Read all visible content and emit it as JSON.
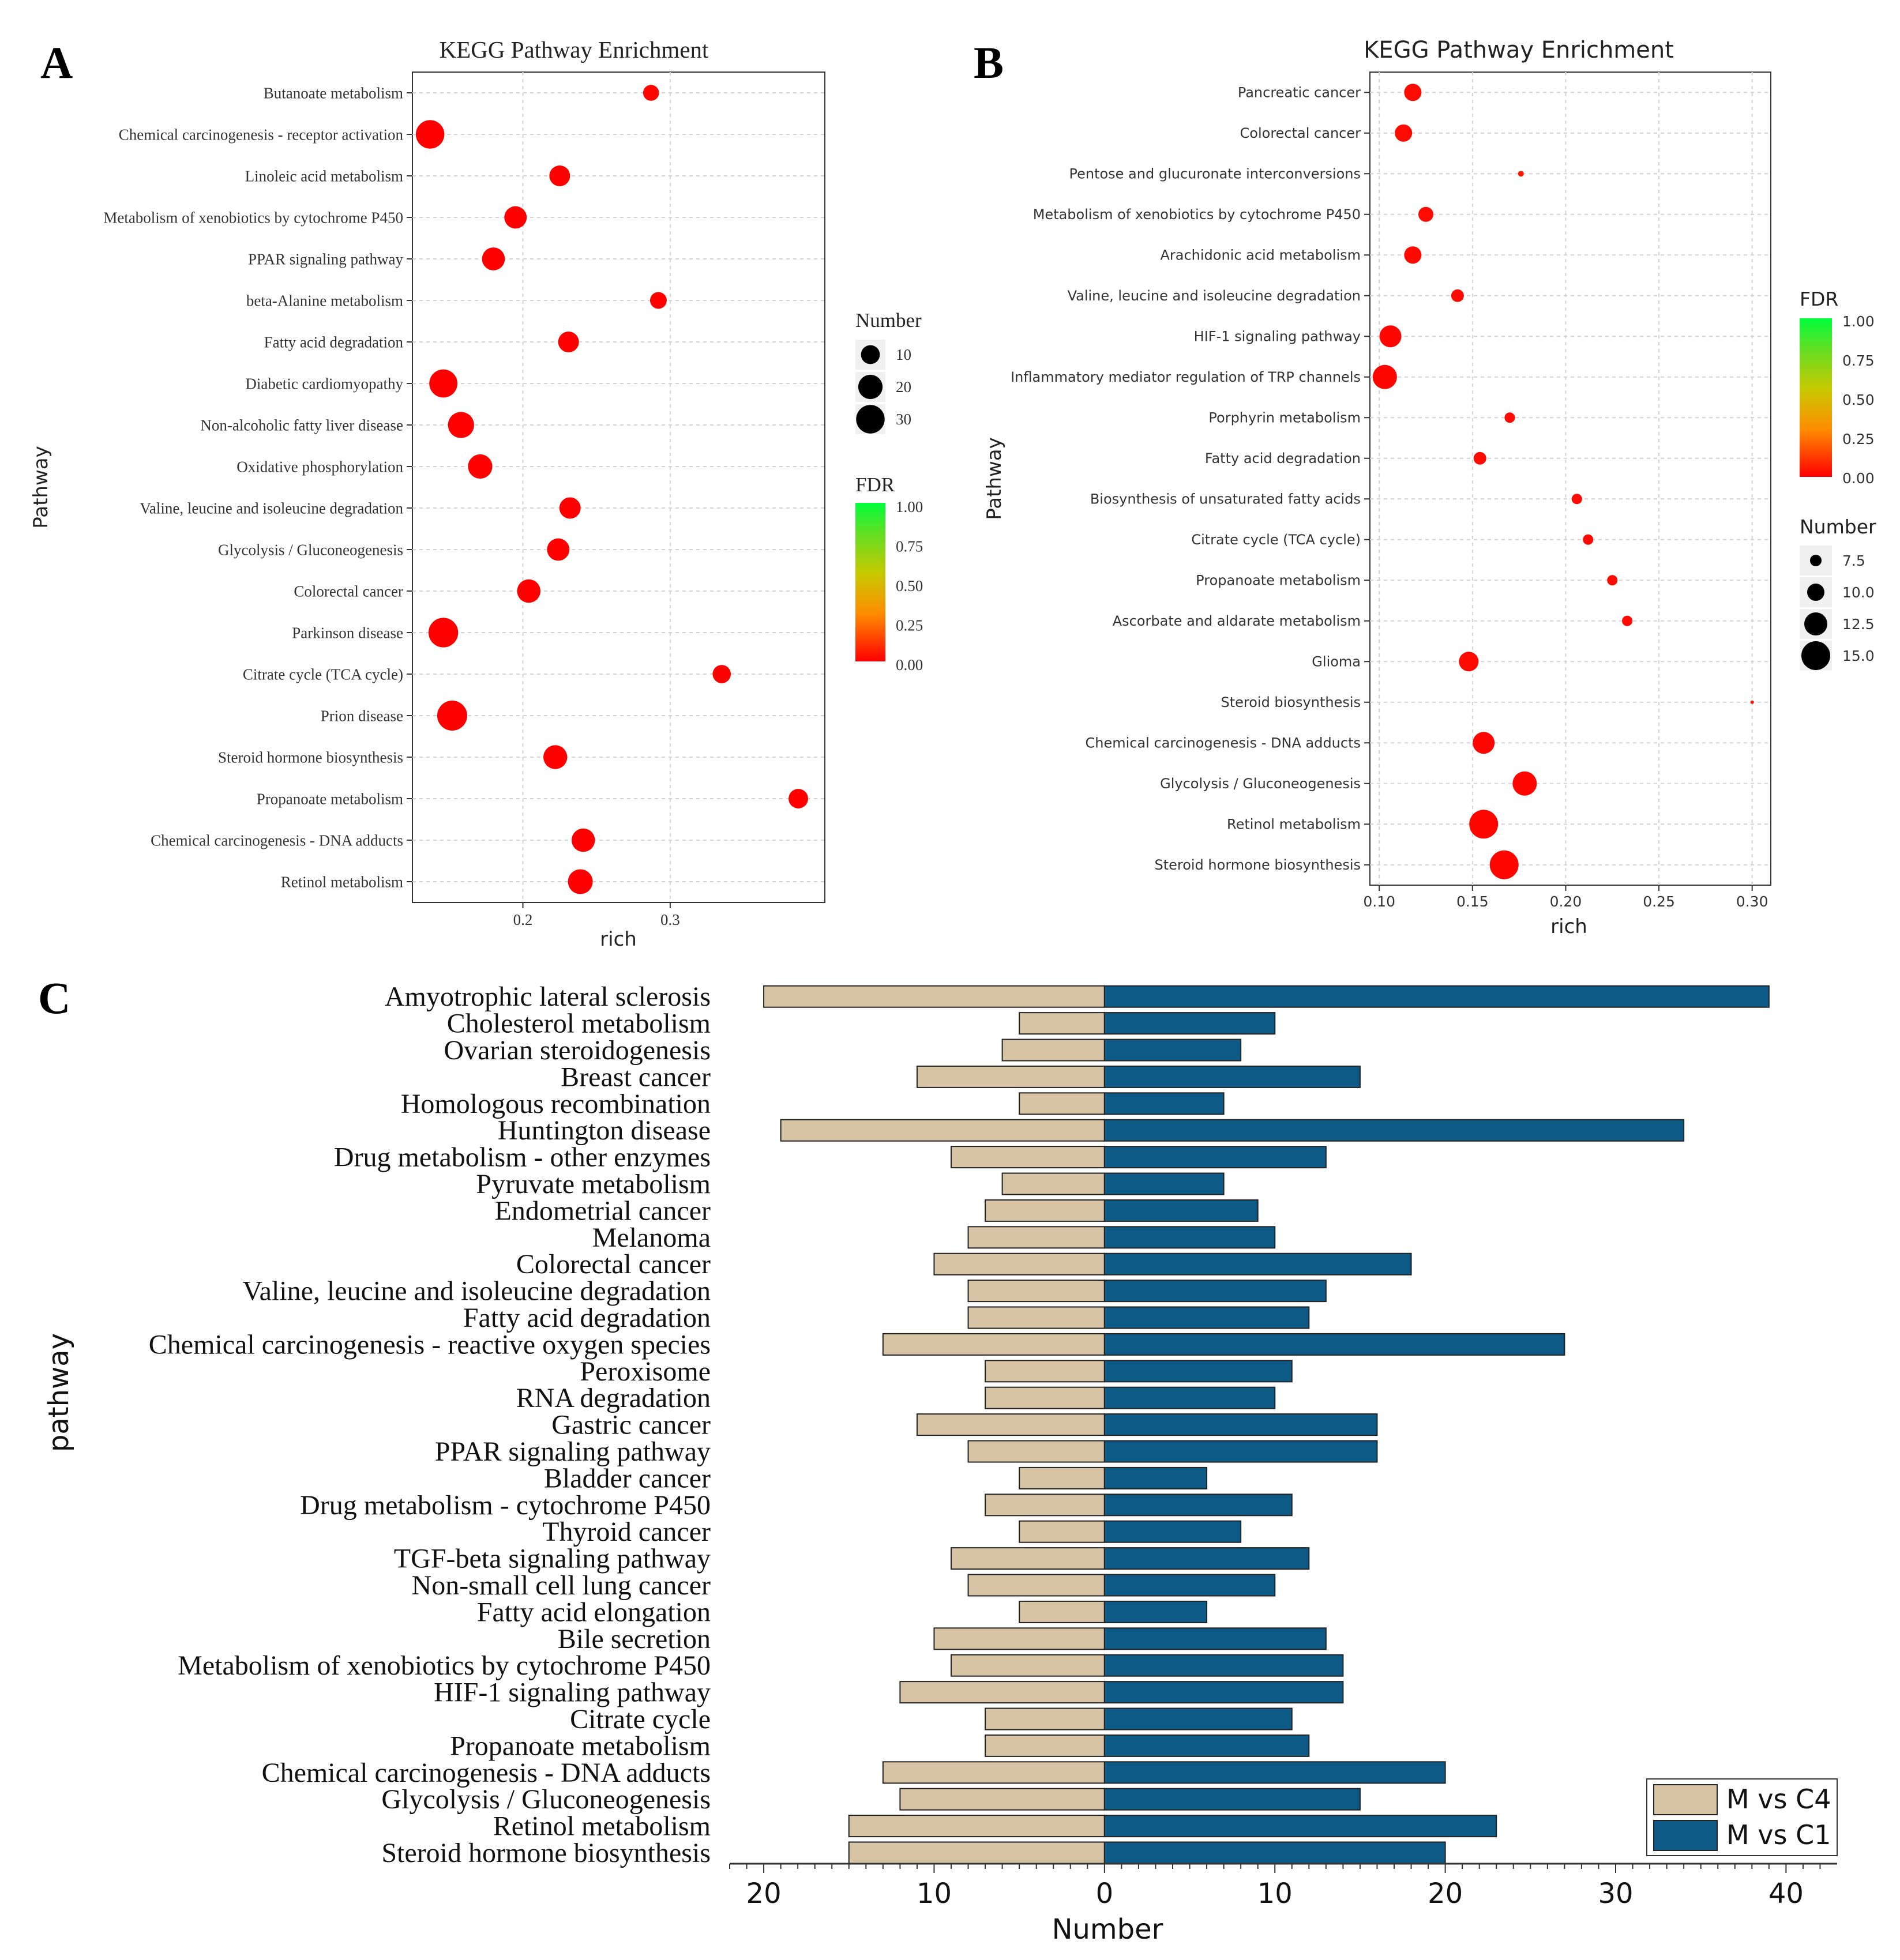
{
  "panels": {
    "A": {
      "letter": "A",
      "title": "KEGG Pathway Enrichment",
      "xlabel": "rich",
      "ylabel": "Pathway",
      "size_legend_title": "Number",
      "fdr_legend_title": "FDR"
    },
    "B": {
      "letter": "B",
      "title": "KEGG Pathway Enrichment",
      "xlabel": "rich",
      "ylabel": "Pathway",
      "size_legend_title": "Number",
      "fdr_legend_title": "FDR"
    },
    "C": {
      "letter": "C",
      "xlabel": "Number",
      "ylabel": "pathway"
    }
  },
  "colors": {
    "dot": "#ff1a00",
    "fdr_gradient": [
      "#ff0000",
      "#ff8c00",
      "#c8c800",
      "#66dd22",
      "#00ff3c"
    ],
    "m_vs_c4": "#d6c4a5",
    "m_vs_c1": "#0c5a85",
    "grid": "#d4d4d4",
    "text": "#333333"
  },
  "chart_data": [
    {
      "panel": "A",
      "type": "scatter",
      "title": "KEGG Pathway Enrichment",
      "xlabel": "rich",
      "ylabel": "Pathway",
      "xlim": [
        0.125,
        0.405
      ],
      "xticks": [
        0.2,
        0.3
      ],
      "xtick_labels": [
        "0.2",
        "0.3"
      ],
      "grid": true,
      "size_legend": {
        "title": "Number",
        "values": [
          10,
          20,
          30
        ]
      },
      "color_legend": {
        "title": "FDR",
        "ticks": [
          "1.00",
          "0.75",
          "0.50",
          "0.25",
          "0.00"
        ]
      },
      "pathways": [
        "Butanoate metabolism",
        "Chemical carcinogenesis - receptor activation",
        "Linoleic acid metabolism",
        "Metabolism of xenobiotics by cytochrome P450",
        "PPAR signaling pathway",
        "beta-Alanine metabolism",
        "Fatty acid degradation",
        "Diabetic cardiomyopathy",
        "Non-alcoholic fatty liver disease",
        "Oxidative phosphorylation",
        "Valine, leucine and isoleucine degradation",
        "Glycolysis / Gluconeogenesis",
        "Colorectal cancer",
        "Parkinson disease",
        "Citrate cycle (TCA cycle)",
        "Prion disease",
        "Steroid hormone biosynthesis",
        "Propanoate metabolism",
        "Chemical carcinogenesis - DNA adducts",
        "Retinol metabolism"
      ],
      "rich": [
        0.287,
        0.137,
        0.225,
        0.195,
        0.18,
        0.292,
        0.231,
        0.146,
        0.158,
        0.171,
        0.232,
        0.224,
        0.204,
        0.146,
        0.335,
        0.152,
        0.222,
        0.387,
        0.241,
        0.239
      ],
      "number": [
        6,
        30,
        13,
        16,
        17,
        7,
        13,
        29,
        24,
        20,
        14,
        16,
        18,
        33,
        9,
        34,
        19,
        11,
        18,
        21
      ],
      "fdr": [
        0.01,
        0.0,
        0.0,
        0.0,
        0.0,
        0.0,
        0.0,
        0.0,
        0.0,
        0.0,
        0.0,
        0.0,
        0.0,
        0.0,
        0.0,
        0.0,
        0.0,
        0.0,
        0.0,
        0.0
      ]
    },
    {
      "panel": "B",
      "type": "scatter",
      "title": "KEGG Pathway Enrichment",
      "xlabel": "rich",
      "ylabel": "Pathway",
      "xlim": [
        0.095,
        0.31
      ],
      "xticks": [
        0.1,
        0.15,
        0.2,
        0.25,
        0.3
      ],
      "xtick_labels": [
        "0.10",
        "0.15",
        "0.20",
        "0.25",
        "0.30"
      ],
      "grid": true,
      "size_legend": {
        "title": "Number",
        "values": [
          7.5,
          10.0,
          12.5,
          15.0
        ]
      },
      "size_legend_labels": [
        "7.5",
        "10.0",
        "12.5",
        "15.0"
      ],
      "color_legend": {
        "title": "FDR",
        "ticks": [
          "1.00",
          "0.75",
          "0.50",
          "0.25",
          "0.00"
        ]
      },
      "pathways": [
        "Pancreatic cancer",
        "Colorectal cancer",
        "Pentose and glucuronate interconversions",
        "Metabolism of xenobiotics by cytochrome P450",
        "Arachidonic acid metabolism",
        "Valine, leucine and isoleucine degradation",
        "HIF-1 signaling pathway",
        "Inflammatory mediator regulation of TRP channels",
        "Porphyrin metabolism",
        "Fatty acid degradation",
        "Biosynthesis of unsaturated fatty acids",
        "Citrate cycle (TCA cycle)",
        "Propanoate metabolism",
        "Ascorbate and aldarate metabolism",
        "Glioma",
        "Steroid biosynthesis",
        "Chemical carcinogenesis - DNA adducts",
        "Glycolysis / Gluconeogenesis",
        "Retinol metabolism",
        "Steroid hormone biosynthesis"
      ],
      "rich": [
        0.118,
        0.113,
        0.176,
        0.125,
        0.118,
        0.142,
        0.106,
        0.103,
        0.17,
        0.154,
        0.206,
        0.212,
        0.225,
        0.233,
        0.148,
        0.3,
        0.156,
        0.178,
        0.156,
        0.167
      ],
      "number": [
        10,
        10,
        5,
        9,
        10,
        8,
        12,
        13,
        7,
        8,
        7,
        7,
        7,
        7,
        11,
        4,
        12,
        13,
        15,
        15
      ],
      "fdr": [
        0.02,
        0.02,
        0.05,
        0.02,
        0.02,
        0.02,
        0.01,
        0.01,
        0.02,
        0.02,
        0.02,
        0.02,
        0.02,
        0.02,
        0.02,
        0.03,
        0.01,
        0.01,
        0.01,
        0.01
      ]
    },
    {
      "panel": "C",
      "type": "bar",
      "orientation": "horizontal",
      "xlabel": "Number",
      "ylabel": "pathway",
      "xlim": [
        -22,
        43
      ],
      "xticks": [
        -20,
        -10,
        0,
        10,
        20,
        30,
        40
      ],
      "xtick_labels": [
        "20",
        "10",
        "0",
        "10",
        "20",
        "30",
        "40"
      ],
      "legend_position": "bottom-right",
      "categories": [
        "Amyotrophic lateral sclerosis",
        "Cholesterol metabolism",
        "Ovarian steroidogenesis",
        "Breast cancer",
        "Homologous recombination",
        "Huntington disease",
        "Drug metabolism - other enzymes",
        "Pyruvate metabolism",
        "Endometrial cancer",
        "Melanoma",
        "Colorectal cancer",
        "Valine, leucine and isoleucine degradation",
        "Fatty acid degradation",
        "Chemical carcinogenesis - reactive oxygen species",
        "Peroxisome",
        "RNA degradation",
        "Gastric cancer",
        "PPAR signaling pathway",
        "Bladder cancer",
        "Drug metabolism - cytochrome P450",
        "Thyroid cancer",
        "TGF-beta signaling pathway",
        "Non-small cell lung cancer",
        "Fatty acid elongation",
        "Bile secretion",
        "Metabolism of xenobiotics by cytochrome P450",
        "HIF-1 signaling pathway",
        "Citrate cycle",
        "Propanoate metabolism",
        "Chemical carcinogenesis - DNA adducts",
        "Glycolysis / Gluconeogenesis",
        "Retinol metabolism",
        "Steroid hormone biosynthesis"
      ],
      "series": [
        {
          "name": "M vs C4",
          "values": [
            20,
            5,
            6,
            11,
            5,
            19,
            9,
            6,
            7,
            8,
            10,
            8,
            8,
            13,
            7,
            7,
            11,
            8,
            5,
            7,
            5,
            9,
            8,
            5,
            10,
            9,
            12,
            7,
            7,
            13,
            12,
            15,
            15
          ]
        },
        {
          "name": "M vs C1",
          "values": [
            39,
            10,
            8,
            15,
            7,
            34,
            13,
            7,
            9,
            10,
            18,
            13,
            12,
            27,
            11,
            10,
            16,
            16,
            6,
            11,
            8,
            12,
            10,
            6,
            13,
            14,
            14,
            11,
            12,
            20,
            15,
            23,
            20
          ]
        }
      ]
    }
  ]
}
